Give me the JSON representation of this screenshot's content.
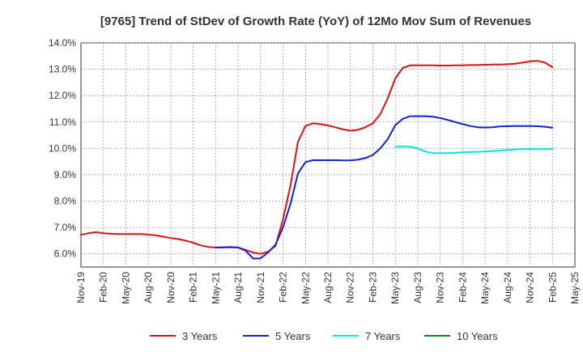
{
  "chart_data": {
    "type": "line",
    "title": "[9765]  Trend of StDev of Growth Rate (YoY) of 12Mo Mov Sum of Revenues",
    "xlabel": "",
    "ylabel": "",
    "ylim": [
      5.5,
      14.0
    ],
    "y_ticks": [
      6.0,
      7.0,
      8.0,
      9.0,
      10.0,
      11.0,
      12.0,
      13.0,
      14.0
    ],
    "y_tick_labels": [
      "6.0%",
      "7.0%",
      "8.0%",
      "9.0%",
      "10.0%",
      "11.0%",
      "12.0%",
      "13.0%",
      "14.0%"
    ],
    "x_tick_labels": [
      "Nov-19",
      "Feb-20",
      "May-20",
      "Aug-20",
      "Nov-20",
      "Feb-21",
      "May-21",
      "Aug-21",
      "Nov-21",
      "Feb-22",
      "May-22",
      "Aug-22",
      "Nov-22",
      "Feb-23",
      "May-23",
      "Aug-23",
      "Nov-23",
      "Feb-24",
      "May-24",
      "Aug-24",
      "Nov-24",
      "Feb-25",
      "May-25"
    ],
    "x_month_count": 66,
    "grid": true,
    "legend_position": "bottom",
    "series": [
      {
        "name": "3 Years",
        "color": "#dd1111",
        "start_month_index": 0,
        "values": [
          6.72,
          6.78,
          6.82,
          6.78,
          6.76,
          6.75,
          6.75,
          6.75,
          6.75,
          6.73,
          6.7,
          6.65,
          6.6,
          6.56,
          6.5,
          6.42,
          6.32,
          6.26,
          6.24,
          6.24,
          6.25,
          6.24,
          6.15,
          6.05,
          6.0,
          6.08,
          6.3,
          7.3,
          8.6,
          10.25,
          10.85,
          10.95,
          10.92,
          10.87,
          10.8,
          10.72,
          10.67,
          10.7,
          10.8,
          10.95,
          11.3,
          11.9,
          12.65,
          13.05,
          13.15,
          13.15,
          13.15,
          13.15,
          13.14,
          13.14,
          13.15,
          13.15,
          13.16,
          13.16,
          13.17,
          13.18,
          13.18,
          13.19,
          13.21,
          13.25,
          13.3,
          13.32,
          13.25,
          13.08
        ]
      },
      {
        "name": "5 Years",
        "color": "#1122cc",
        "start_month_index": 18,
        "values": [
          6.24,
          6.25,
          6.26,
          6.24,
          6.12,
          5.82,
          5.83,
          6.05,
          6.35,
          7.0,
          7.9,
          9.05,
          9.48,
          9.55,
          9.55,
          9.55,
          9.55,
          9.54,
          9.54,
          9.57,
          9.63,
          9.75,
          10.0,
          10.35,
          10.88,
          11.12,
          11.22,
          11.22,
          11.22,
          11.2,
          11.15,
          11.08,
          11.0,
          10.92,
          10.85,
          10.8,
          10.79,
          10.8,
          10.83,
          10.84,
          10.85,
          10.85,
          10.85,
          10.84,
          10.82,
          10.78
        ]
      },
      {
        "name": "7 Years",
        "color": "#00e5e5",
        "start_month_index": 42,
        "values": [
          10.06,
          10.07,
          10.06,
          10.0,
          9.88,
          9.82,
          9.82,
          9.82,
          9.83,
          9.85,
          9.86,
          9.87,
          9.88,
          9.9,
          9.92,
          9.94,
          9.96,
          9.97,
          9.97,
          9.97,
          9.97,
          9.97
        ]
      },
      {
        "name": "10 Years",
        "color": "#118811",
        "start_month_index": 63,
        "values": []
      }
    ]
  }
}
